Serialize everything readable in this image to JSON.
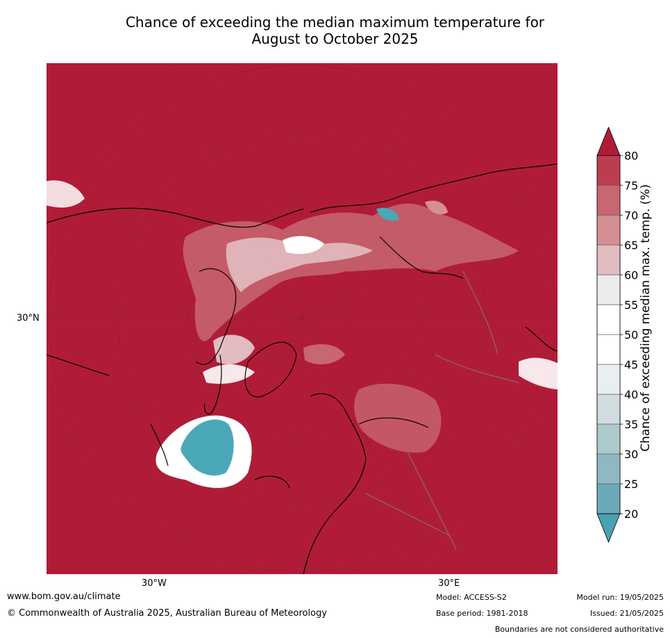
{
  "title_line1": "Chance of exceeding the median maximum temperature for",
  "title_line2": "August to October 2025",
  "axis_labels": {
    "lat_30n": "30°N",
    "lon_30w": "30°W",
    "lon_30e": "30°E"
  },
  "colorbar": {
    "label": "Chance of exceeding median max. temp. (%)",
    "ticks": [
      "80",
      "75",
      "70",
      "65",
      "60",
      "55",
      "50",
      "45",
      "40",
      "35",
      "30",
      "25",
      "20"
    ],
    "bands_top_to_bottom": [
      "#bd3d50",
      "#c86671",
      "#d48f95",
      "#e2bcc0",
      "#ececec",
      "#ffffff",
      "#ffffff",
      "#e9eef1",
      "#d2dbde",
      "#adcacd",
      "#8fb8c4",
      "#6aaab8"
    ],
    "upper_arrow_color": "#b01c38",
    "lower_arrow_color": "#4aa0b0"
  },
  "colors": {
    "ocean_land_high": "#b01c38",
    "cool_anomaly": "#4ba8b8"
  },
  "footer": {
    "website": "www.bom.gov.au/climate",
    "copyright": "© Commonwealth of Australia 2025, Australian Bureau of Meteorology",
    "model": "Model: ACCESS-S2",
    "base_period": "Base period: 1981-2018",
    "model_run": "Model run: 19/05/2025",
    "issued": "Issued: 21/05/2025",
    "disclaimer": "Boundaries are not considered authoritative"
  }
}
